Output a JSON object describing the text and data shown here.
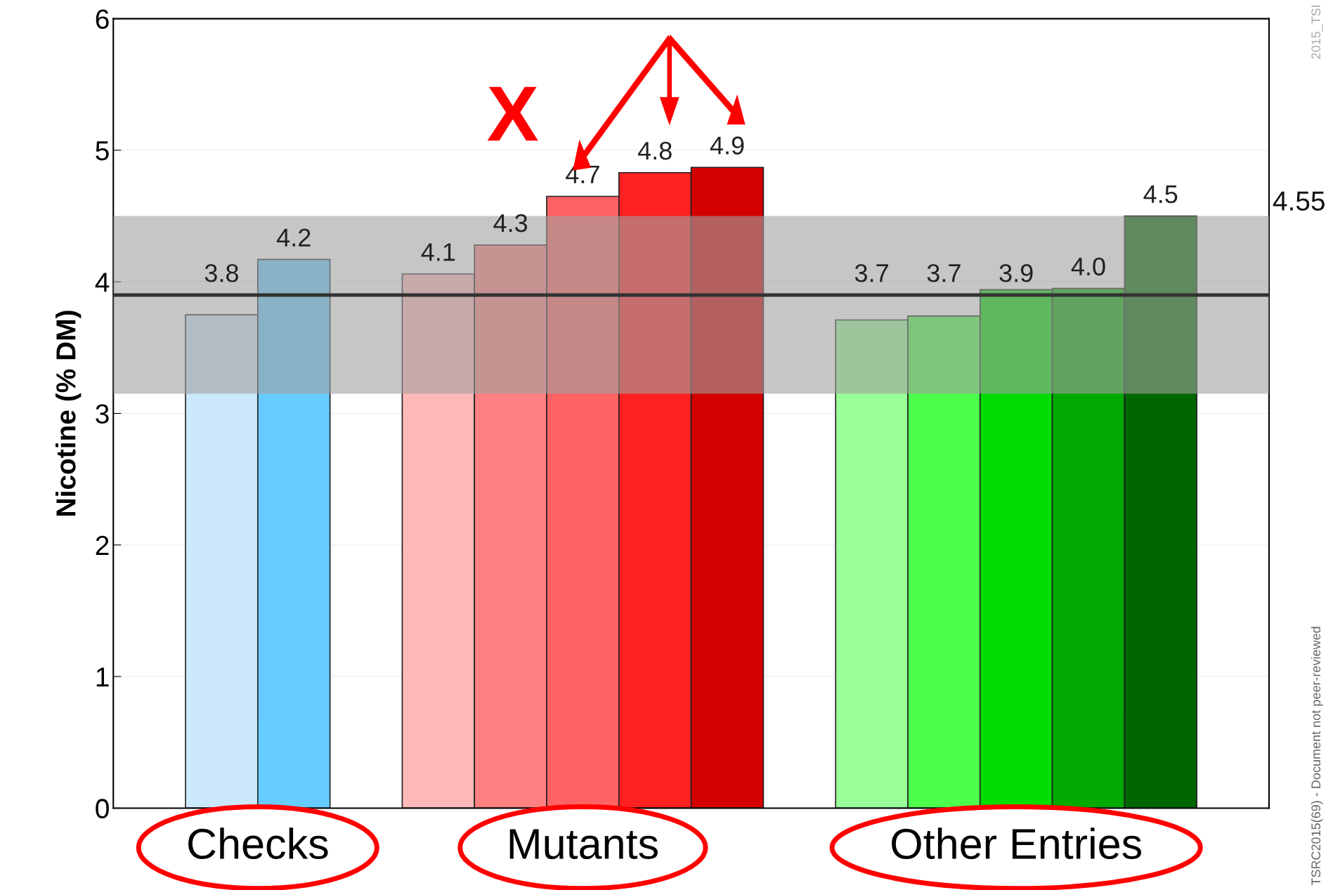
{
  "chart_data": {
    "type": "bar",
    "ylabel": "Nicotine (% DM)",
    "categories": [
      null,
      null,
      null,
      null,
      null,
      null,
      null,
      null,
      null,
      null,
      null,
      null,
      null,
      null,
      null,
      null
    ],
    "values": [
      null,
      3.75,
      4.17,
      null,
      4.06,
      4.28,
      4.65,
      4.83,
      4.87,
      null,
      3.71,
      3.74,
      3.94,
      3.95,
      4.5,
      null
    ],
    "colors": [
      "#ffffff",
      "#cce9fc",
      "#66ccff",
      "#ffffff",
      "#ffb9b9",
      "#ff8080",
      "#ff6262",
      "#ff2121",
      "#d40000",
      "#ffffff",
      "#99ff99",
      "#4cff4c",
      "#00dd00",
      "#00aa00",
      "#006600",
      "#ffffff"
    ],
    "value_labels": [
      null,
      "3.8",
      "4.2",
      null,
      "4.1",
      "4.3",
      "4.7",
      "4.8",
      "4.9",
      null,
      "3.7",
      "3.7",
      "3.9",
      "4.0",
      "4.5",
      null
    ],
    "ylim": [
      0,
      6
    ],
    "yticks": [
      0,
      1,
      2,
      3,
      4,
      5,
      6
    ],
    "grid": "y",
    "bands": [
      {
        "axis": "y",
        "from": 3.15,
        "to": 4.5,
        "label": "4.55",
        "color": "#a0a0a0"
      }
    ],
    "ref_lines": [
      {
        "axis": "y",
        "value": 3.9,
        "color": "#333333",
        "line_style": "solid"
      }
    ],
    "annotations": [
      "X",
      "Checks",
      "Mutants",
      "Other Entries",
      "2015_TSI",
      "TSRC2015(69) - Document not peer-reviewed"
    ]
  }
}
